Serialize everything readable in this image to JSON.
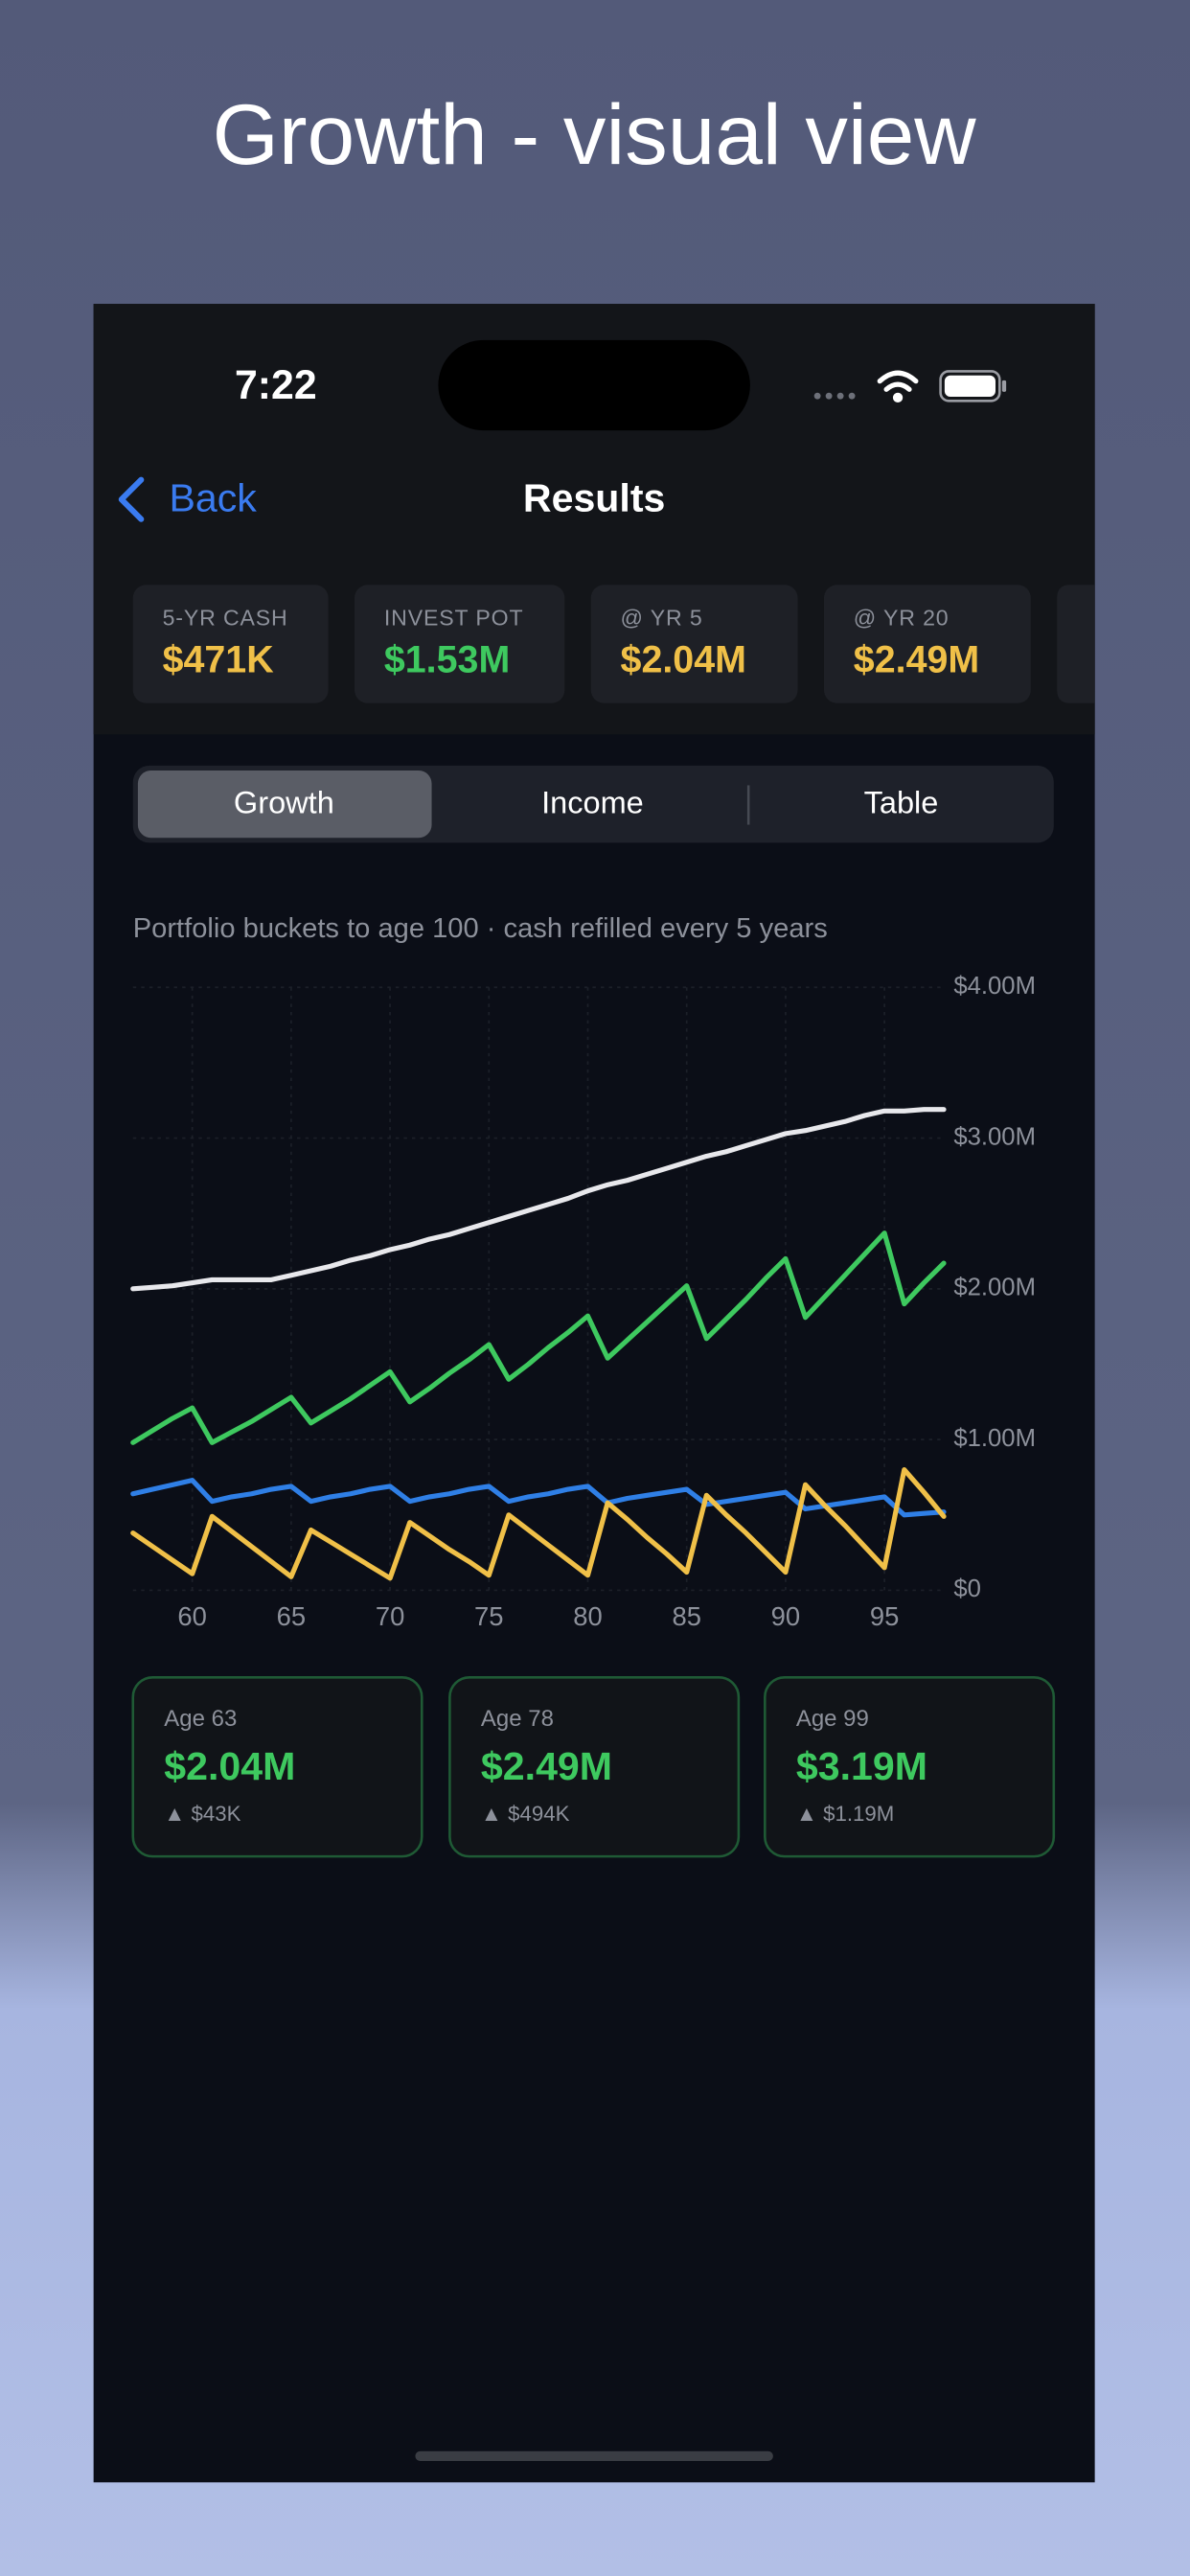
{
  "header": {
    "title": "Growth - visual view"
  },
  "status_bar": {
    "time": "7:22"
  },
  "nav": {
    "back": "Back",
    "title": "Results"
  },
  "stats": [
    {
      "label": "5-YR CASH",
      "value": "$471K",
      "color": "#f0c048"
    },
    {
      "label": "INVEST POT",
      "value": "$1.53M",
      "color": "#3ec95f"
    },
    {
      "label": "@ YR 5",
      "value": "$2.04M",
      "color": "#f0c048"
    },
    {
      "label": "@ YR 20",
      "value": "$2.49M",
      "color": "#f0c048"
    }
  ],
  "tabs": {
    "items": [
      "Growth",
      "Income",
      "Table"
    ],
    "selected": 0
  },
  "chart_data": {
    "type": "line",
    "subtitle": "Portfolio buckets to age 100 · cash refilled every 5 years",
    "x": [
      57,
      58,
      59,
      60,
      61,
      62,
      63,
      64,
      65,
      66,
      67,
      68,
      69,
      70,
      71,
      72,
      73,
      74,
      75,
      76,
      77,
      78,
      79,
      80,
      81,
      82,
      83,
      84,
      85,
      86,
      87,
      88,
      89,
      90,
      91,
      92,
      93,
      94,
      95,
      96,
      97,
      98
    ],
    "xlim": [
      57,
      98
    ],
    "xticks": [
      60,
      65,
      70,
      75,
      80,
      85,
      90,
      95
    ],
    "ylim": [
      0,
      4
    ],
    "yticks": [
      {
        "value": 0,
        "label": "$0"
      },
      {
        "value": 1,
        "label": "$1.00M"
      },
      {
        "value": 2,
        "label": "$2.00M"
      },
      {
        "value": 3,
        "label": "$3.00M"
      },
      {
        "value": 4,
        "label": "$4.00M"
      }
    ],
    "grid": true,
    "series": [
      {
        "color": "#e8e8ec",
        "values": [
          2.0,
          2.01,
          2.02,
          2.04,
          2.06,
          2.06,
          2.06,
          2.06,
          2.09,
          2.12,
          2.15,
          2.19,
          2.22,
          2.26,
          2.29,
          2.33,
          2.36,
          2.4,
          2.44,
          2.48,
          2.52,
          2.56,
          2.6,
          2.65,
          2.69,
          2.72,
          2.76,
          2.8,
          2.84,
          2.88,
          2.91,
          2.95,
          2.99,
          3.03,
          3.05,
          3.08,
          3.11,
          3.15,
          3.18,
          3.18,
          3.19,
          3.19
        ]
      },
      {
        "color": "#3ec95f",
        "values": [
          0.98,
          1.06,
          1.14,
          1.21,
          0.98,
          1.05,
          1.12,
          1.2,
          1.28,
          1.11,
          1.19,
          1.27,
          1.36,
          1.45,
          1.25,
          1.34,
          1.44,
          1.53,
          1.63,
          1.4,
          1.5,
          1.61,
          1.71,
          1.82,
          1.54,
          1.66,
          1.78,
          1.9,
          2.02,
          1.67,
          1.8,
          1.93,
          2.07,
          2.2,
          1.81,
          1.95,
          2.09,
          2.23,
          2.37,
          1.9,
          2.04,
          2.17
        ]
      },
      {
        "color": "#2f7fe6",
        "values": [
          0.64,
          0.67,
          0.7,
          0.73,
          0.59,
          0.62,
          0.64,
          0.67,
          0.69,
          0.59,
          0.62,
          0.64,
          0.67,
          0.69,
          0.59,
          0.62,
          0.64,
          0.67,
          0.69,
          0.59,
          0.62,
          0.64,
          0.67,
          0.69,
          0.58,
          0.61,
          0.63,
          0.65,
          0.67,
          0.57,
          0.59,
          0.61,
          0.63,
          0.65,
          0.54,
          0.56,
          0.58,
          0.6,
          0.62,
          0.5,
          0.51,
          0.52
        ]
      },
      {
        "color": "#f0c048",
        "values": [
          0.38,
          0.29,
          0.2,
          0.11,
          0.49,
          0.39,
          0.29,
          0.19,
          0.09,
          0.4,
          0.32,
          0.24,
          0.16,
          0.08,
          0.45,
          0.36,
          0.27,
          0.19,
          0.1,
          0.5,
          0.4,
          0.3,
          0.2,
          0.1,
          0.58,
          0.47,
          0.35,
          0.24,
          0.12,
          0.63,
          0.5,
          0.38,
          0.25,
          0.12,
          0.7,
          0.56,
          0.43,
          0.29,
          0.15,
          0.8,
          0.65,
          0.49
        ]
      }
    ]
  },
  "milestones": [
    {
      "age": "Age 63",
      "value": "$2.04M",
      "change": "▲ $43K"
    },
    {
      "age": "Age 78",
      "value": "$2.49M",
      "change": "▲ $494K"
    },
    {
      "age": "Age 99",
      "value": "$3.19M",
      "change": "▲ $1.19M"
    }
  ]
}
